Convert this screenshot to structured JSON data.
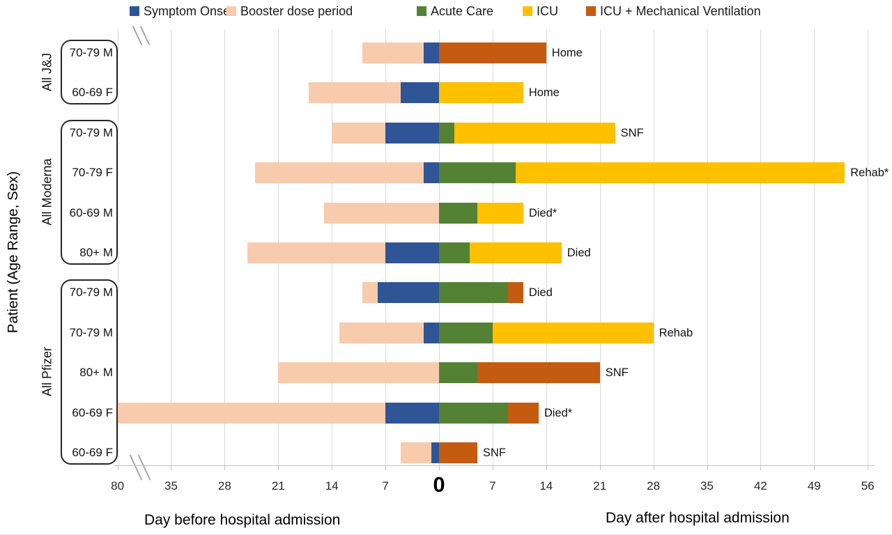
{
  "y_axis_title": "Patient (Age Range, Sex)",
  "x_axis": {
    "before_label": "Day before hospital admission",
    "after_label": "Day after hospital admission",
    "zero_label": "0",
    "axis_break_between": [
      "80",
      "35"
    ],
    "ticks": [
      {
        "label": "80",
        "day": -80
      },
      {
        "label": "35",
        "day": -35
      },
      {
        "label": "28",
        "day": -28
      },
      {
        "label": "21",
        "day": -21
      },
      {
        "label": "14",
        "day": -14
      },
      {
        "label": "7",
        "day": -7
      },
      {
        "label": "0",
        "day": 0,
        "emphasis": true
      },
      {
        "label": "7",
        "day": 7
      },
      {
        "label": "14",
        "day": 14
      },
      {
        "label": "21",
        "day": 21
      },
      {
        "label": "28",
        "day": 28
      },
      {
        "label": "35",
        "day": 35
      },
      {
        "label": "42",
        "day": 42
      },
      {
        "label": "49",
        "day": 49
      },
      {
        "label": "56",
        "day": 56
      }
    ]
  },
  "legend": [
    {
      "key": "symptom",
      "label": "Symptom Onset",
      "color": "#2F5597"
    },
    {
      "key": "booster",
      "label": "Booster dose period",
      "color": "#F8CBAD"
    },
    {
      "key": "acute",
      "label": "Acute Care",
      "color": "#548235"
    },
    {
      "key": "icu",
      "label": "ICU",
      "color": "#FFC000"
    },
    {
      "key": "icu_mv",
      "label": "ICU + Mechanical Ventilation",
      "color": "#C55A11"
    }
  ],
  "groups": [
    {
      "label": "All J&J",
      "rows": [
        0,
        1
      ]
    },
    {
      "label": "All Moderna",
      "rows": [
        2,
        3,
        4,
        5
      ]
    },
    {
      "label": "All Pfizer",
      "rows": [
        6,
        7,
        8,
        9,
        10
      ]
    }
  ],
  "chart_data": {
    "type": "bar",
    "subtype": "horizontal-stacked-timeline",
    "x_unit": "days relative to hospital admission (day 0 = admission)",
    "x_range_before": [
      -80,
      0
    ],
    "x_range_after": [
      0,
      56
    ],
    "axis_break": {
      "left_of_day": -35,
      "edge_tick_value": 80
    },
    "grid": true,
    "legend_position": "top",
    "rows": [
      {
        "group": "All J&J",
        "patient": "70-79 M",
        "outcome": "Home",
        "segments": [
          [
            "booster",
            -10,
            -2
          ],
          [
            "symptom",
            -2,
            0
          ],
          [
            "icu_mv",
            0,
            14
          ]
        ]
      },
      {
        "group": "All J&J",
        "patient": "60-69 F",
        "outcome": "Home",
        "segments": [
          [
            "booster",
            -17,
            -5
          ],
          [
            "symptom",
            -5,
            0
          ],
          [
            "icu",
            0,
            11
          ]
        ]
      },
      {
        "group": "All Moderna",
        "patient": "70-79 M",
        "outcome": "SNF",
        "segments": [
          [
            "booster",
            -14,
            -7
          ],
          [
            "symptom",
            -7,
            0
          ],
          [
            "acute",
            0,
            2
          ],
          [
            "icu",
            2,
            23
          ]
        ]
      },
      {
        "group": "All Moderna",
        "patient": "70-79 F",
        "outcome": "Rehab*",
        "segments": [
          [
            "booster",
            -24,
            -2
          ],
          [
            "symptom",
            -2,
            0
          ],
          [
            "acute",
            0,
            10
          ],
          [
            "icu",
            10,
            53
          ]
        ]
      },
      {
        "group": "All Moderna",
        "patient": "60-69 M",
        "outcome": "Died*",
        "segments": [
          [
            "booster",
            -15,
            0
          ],
          [
            "acute",
            0,
            5
          ],
          [
            "icu",
            5,
            11
          ]
        ]
      },
      {
        "group": "All Moderna",
        "patient": "80+ M",
        "outcome": "Died",
        "segments": [
          [
            "booster",
            -25,
            -7
          ],
          [
            "symptom",
            -7,
            0
          ],
          [
            "acute",
            0,
            4
          ],
          [
            "icu",
            4,
            16
          ]
        ]
      },
      {
        "group": "All Pfizer",
        "patient": "70-79 M",
        "outcome": "Died",
        "segments": [
          [
            "booster",
            -10,
            -8
          ],
          [
            "symptom",
            -8,
            0
          ],
          [
            "acute",
            0,
            9
          ],
          [
            "icu_mv",
            9,
            11
          ]
        ]
      },
      {
        "group": "All Pfizer",
        "patient": "70-79 M",
        "outcome": "Rehab",
        "segments": [
          [
            "booster",
            -13,
            -2
          ],
          [
            "symptom",
            -2,
            0
          ],
          [
            "acute",
            0,
            7
          ],
          [
            "icu",
            7,
            28
          ]
        ]
      },
      {
        "group": "All Pfizer",
        "patient": "80+ M",
        "outcome": "SNF",
        "segments": [
          [
            "booster",
            -21,
            0
          ],
          [
            "acute",
            0,
            5
          ],
          [
            "icu_mv",
            5,
            21
          ]
        ]
      },
      {
        "group": "All Pfizer",
        "patient": "60-69 F",
        "outcome": "Died*",
        "segments": [
          [
            "booster",
            -80,
            -7
          ],
          [
            "symptom",
            -7,
            0
          ],
          [
            "acute",
            0,
            9
          ],
          [
            "icu_mv",
            9,
            13
          ]
        ]
      },
      {
        "group": "All Pfizer",
        "patient": "60-69 F",
        "outcome": "SNF",
        "segments": [
          [
            "booster",
            -5,
            -1
          ],
          [
            "symptom",
            -1,
            0
          ],
          [
            "icu_mv",
            0,
            5
          ]
        ]
      }
    ]
  }
}
